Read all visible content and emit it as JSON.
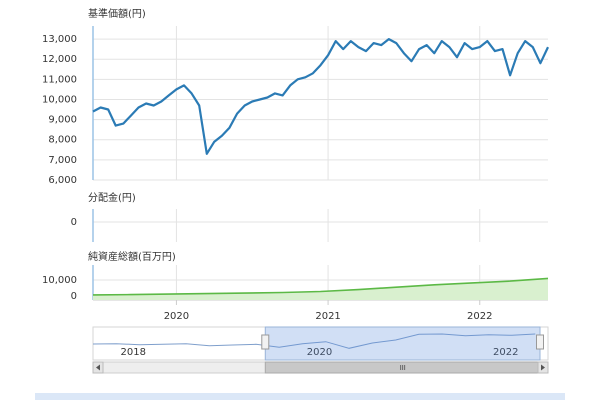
{
  "chart_data": [
    {
      "type": "line",
      "title": "基準価額(円)",
      "color": "#2b7bb5",
      "x": [
        2019.45,
        2019.5,
        2019.55,
        2019.6,
        2019.65,
        2019.7,
        2019.75,
        2019.8,
        2019.85,
        2019.9,
        2019.95,
        2020.0,
        2020.05,
        2020.1,
        2020.15,
        2020.2,
        2020.25,
        2020.3,
        2020.35,
        2020.4,
        2020.45,
        2020.5,
        2020.55,
        2020.6,
        2020.65,
        2020.7,
        2020.75,
        2020.8,
        2020.85,
        2020.9,
        2020.95,
        2021.0,
        2021.05,
        2021.1,
        2021.15,
        2021.2,
        2021.25,
        2021.3,
        2021.35,
        2021.4,
        2021.45,
        2021.5,
        2021.55,
        2021.6,
        2021.65,
        2021.7,
        2021.75,
        2021.8,
        2021.85,
        2021.9,
        2021.95,
        2022.0,
        2022.05,
        2022.1,
        2022.15,
        2022.2,
        2022.25,
        2022.3,
        2022.35,
        2022.4,
        2022.45
      ],
      "values": [
        9400,
        9600,
        9500,
        8700,
        8800,
        9200,
        9600,
        9800,
        9700,
        9900,
        10200,
        10500,
        10700,
        10300,
        9700,
        7300,
        7900,
        8200,
        8600,
        9300,
        9700,
        9900,
        10000,
        10100,
        10300,
        10200,
        10700,
        11000,
        11100,
        11300,
        11700,
        12200,
        12900,
        12500,
        12900,
        12600,
        12400,
        12800,
        12700,
        13000,
        12800,
        12300,
        11900,
        12500,
        12700,
        12300,
        12900,
        12600,
        12100,
        12800,
        12500,
        12600,
        12900,
        12400,
        12500,
        11200,
        12300,
        12900,
        12600,
        11800,
        12600
      ],
      "xlim": [
        2019.45,
        2022.45
      ],
      "xticks": [
        2020,
        2021,
        2022
      ],
      "ylim": [
        6000,
        13500
      ],
      "yticks": [
        {
          "value": 6000,
          "label": "6,000"
        },
        {
          "value": 7000,
          "label": "7,000"
        },
        {
          "value": 8000,
          "label": "8,000"
        },
        {
          "value": 9000,
          "label": "9,000"
        },
        {
          "value": 10000,
          "label": "10,000"
        },
        {
          "value": 11000,
          "label": "11,000"
        },
        {
          "value": 12000,
          "label": "12,000"
        },
        {
          "value": 13000,
          "label": "13,000"
        }
      ],
      "grid": true
    },
    {
      "type": "line",
      "title": "分配金(円)",
      "xlim": [
        2019.45,
        2022.45
      ],
      "xticks": [
        2020,
        2021,
        2022
      ],
      "ylim": [
        -2,
        1
      ],
      "yticks": [
        0
      ],
      "grid": true
    },
    {
      "type": "area",
      "title": "純資産総額(百万円)",
      "color": "#5cb946",
      "fill": "#d9f0cf",
      "x": [
        2019.45,
        2019.7,
        2019.95,
        2020.2,
        2020.45,
        2020.7,
        2020.95,
        2021.2,
        2021.45,
        2021.7,
        2021.95,
        2022.2,
        2022.45
      ],
      "values": [
        700,
        900,
        1200,
        1500,
        1800,
        2200,
        2800,
        4000,
        5500,
        7000,
        8200,
        9300,
        11000
      ],
      "xlim": [
        2019.45,
        2022.45
      ],
      "xticks": [
        2020,
        2021,
        2022
      ],
      "xtick_labels": true,
      "ylim": [
        -2500,
        17500
      ],
      "yticks": [
        {
          "value": 10000,
          "label": "10,000"
        },
        0
      ],
      "grid": true
    },
    {
      "type": "navigator",
      "color": "#7f9fcc",
      "x": [
        2017.6,
        2017.85,
        2018.1,
        2018.35,
        2018.6,
        2018.85,
        2019.1,
        2019.35,
        2019.6,
        2019.85,
        2020.1,
        2020.35,
        2020.6,
        2020.85,
        2021.1,
        2021.35,
        2021.6,
        2021.85,
        2022.1,
        2022.35
      ],
      "values": [
        9800,
        9900,
        9600,
        9700,
        9900,
        9300,
        9500,
        9700,
        8800,
        9900,
        10500,
        8500,
        10100,
        11000,
        12700,
        12800,
        12300,
        12600,
        12400,
        12800
      ],
      "xlim": [
        2017.6,
        2022.4
      ],
      "xticks": [
        2018,
        2020,
        2022
      ],
      "ylim": [
        5000,
        14000
      ],
      "selection": [
        2019.45,
        2022.4
      ]
    }
  ]
}
